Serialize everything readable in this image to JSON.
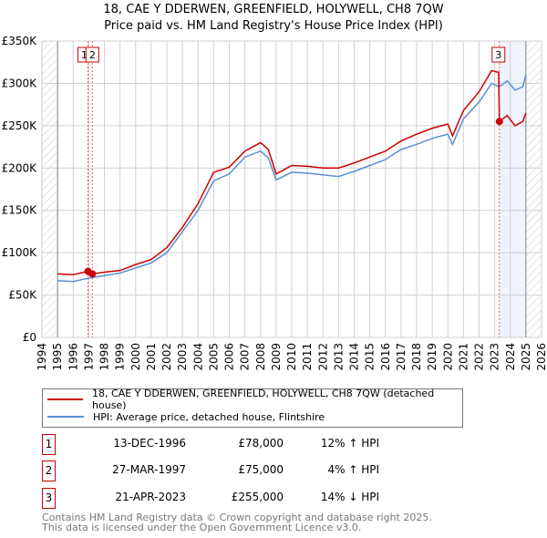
{
  "chart_data": {
    "type": "line",
    "title": "18, CAE Y DDERWEN, GREENFIELD, HOLYWELL, CH8 7QW",
    "subtitle": "Price paid vs. HM Land Registry's House Price Index (HPI)",
    "xlim": [
      1994,
      2026
    ],
    "ylim": [
      0,
      350000
    ],
    "x_ticks": [
      "1994",
      "1995",
      "1996",
      "1997",
      "1998",
      "1999",
      "2000",
      "2001",
      "2002",
      "2003",
      "2004",
      "2005",
      "2006",
      "2007",
      "2008",
      "2009",
      "2010",
      "2011",
      "2012",
      "2013",
      "2014",
      "2015",
      "2016",
      "2017",
      "2018",
      "2019",
      "2020",
      "2021",
      "2022",
      "2023",
      "2024",
      "2025",
      "2026"
    ],
    "y_ticks": [
      {
        "v": 0,
        "label": "£0"
      },
      {
        "v": 50000,
        "label": "£50K"
      },
      {
        "v": 100000,
        "label": "£100K"
      },
      {
        "v": 150000,
        "label": "£150K"
      },
      {
        "v": 200000,
        "label": "£200K"
      },
      {
        "v": 250000,
        "label": "£250K"
      },
      {
        "v": 300000,
        "label": "£300K"
      },
      {
        "v": 350000,
        "label": "£350K"
      }
    ],
    "grid": true,
    "series": [
      {
        "name": "18, CAE Y DDERWEN, GREENFIELD, HOLYWELL, CH8 7QW (detached house)",
        "color": "#cc0000",
        "x": [
          1995,
          1996,
          1996.95,
          1997.23,
          1998,
          1999,
          2000,
          2001,
          2002,
          2003,
          2004,
          2005,
          2006,
          2007,
          2008,
          2008.5,
          2009,
          2010,
          2011,
          2012,
          2013,
          2014,
          2015,
          2016,
          2017,
          2018,
          2019,
          2020,
          2020.3,
          2021,
          2022,
          2022.8,
          2023.25,
          2023.3,
          2023.8,
          2024.3,
          2024.8,
          2025
        ],
        "y": [
          75000,
          74000,
          78000,
          75000,
          77000,
          79000,
          86000,
          92000,
          106000,
          130000,
          158000,
          195000,
          201000,
          220000,
          230000,
          222000,
          193000,
          203000,
          202000,
          200000,
          200000,
          206000,
          213000,
          220000,
          232000,
          240000,
          247000,
          252000,
          238000,
          268000,
          290000,
          315000,
          313000,
          255000,
          262000,
          250000,
          255000,
          265000
        ]
      },
      {
        "name": "HPI: Average price, detached house, Flintshire",
        "color": "#5b8fd4",
        "x": [
          1995,
          1996,
          1997,
          1998,
          1999,
          2000,
          2001,
          2002,
          2003,
          2004,
          2005,
          2006,
          2007,
          2008,
          2008.5,
          2009,
          2010,
          2011,
          2012,
          2013,
          2014,
          2015,
          2016,
          2017,
          2018,
          2019,
          2020,
          2020.3,
          2021,
          2022,
          2022.8,
          2023.3,
          2023.8,
          2024.3,
          2024.8,
          2025
        ],
        "y": [
          67000,
          66000,
          70000,
          73000,
          76000,
          82000,
          88000,
          100000,
          125000,
          150000,
          185000,
          193000,
          213000,
          220000,
          212000,
          186000,
          195000,
          194000,
          192000,
          190000,
          196000,
          203000,
          210000,
          222000,
          228000,
          235000,
          240000,
          228000,
          258000,
          278000,
          300000,
          296000,
          303000,
          292000,
          296000,
          310000
        ]
      }
    ],
    "sales": [
      {
        "num": "1",
        "x": 1996.95,
        "y": 78000,
        "date": "13-DEC-1996",
        "price": "£78,000",
        "hpi": "12% ↑ HPI"
      },
      {
        "num": "2",
        "x": 1997.23,
        "y": 75000,
        "date": "27-MAR-1997",
        "price": "£75,000",
        "hpi": "4% ↑ HPI"
      },
      {
        "num": "3",
        "x": 2023.3,
        "y": 255000,
        "date": "21-APR-2023",
        "price": "£255,000",
        "hpi": "14% ↓ HPI"
      }
    ],
    "shade_range": [
      2023.3,
      2025
    ],
    "hatch_before": 1995,
    "hatch_after": 2025
  },
  "footer": {
    "line1": "Contains HM Land Registry data © Crown copyright and database right 2025.",
    "line2": "This data is licensed under the Open Government Licence v3.0."
  }
}
